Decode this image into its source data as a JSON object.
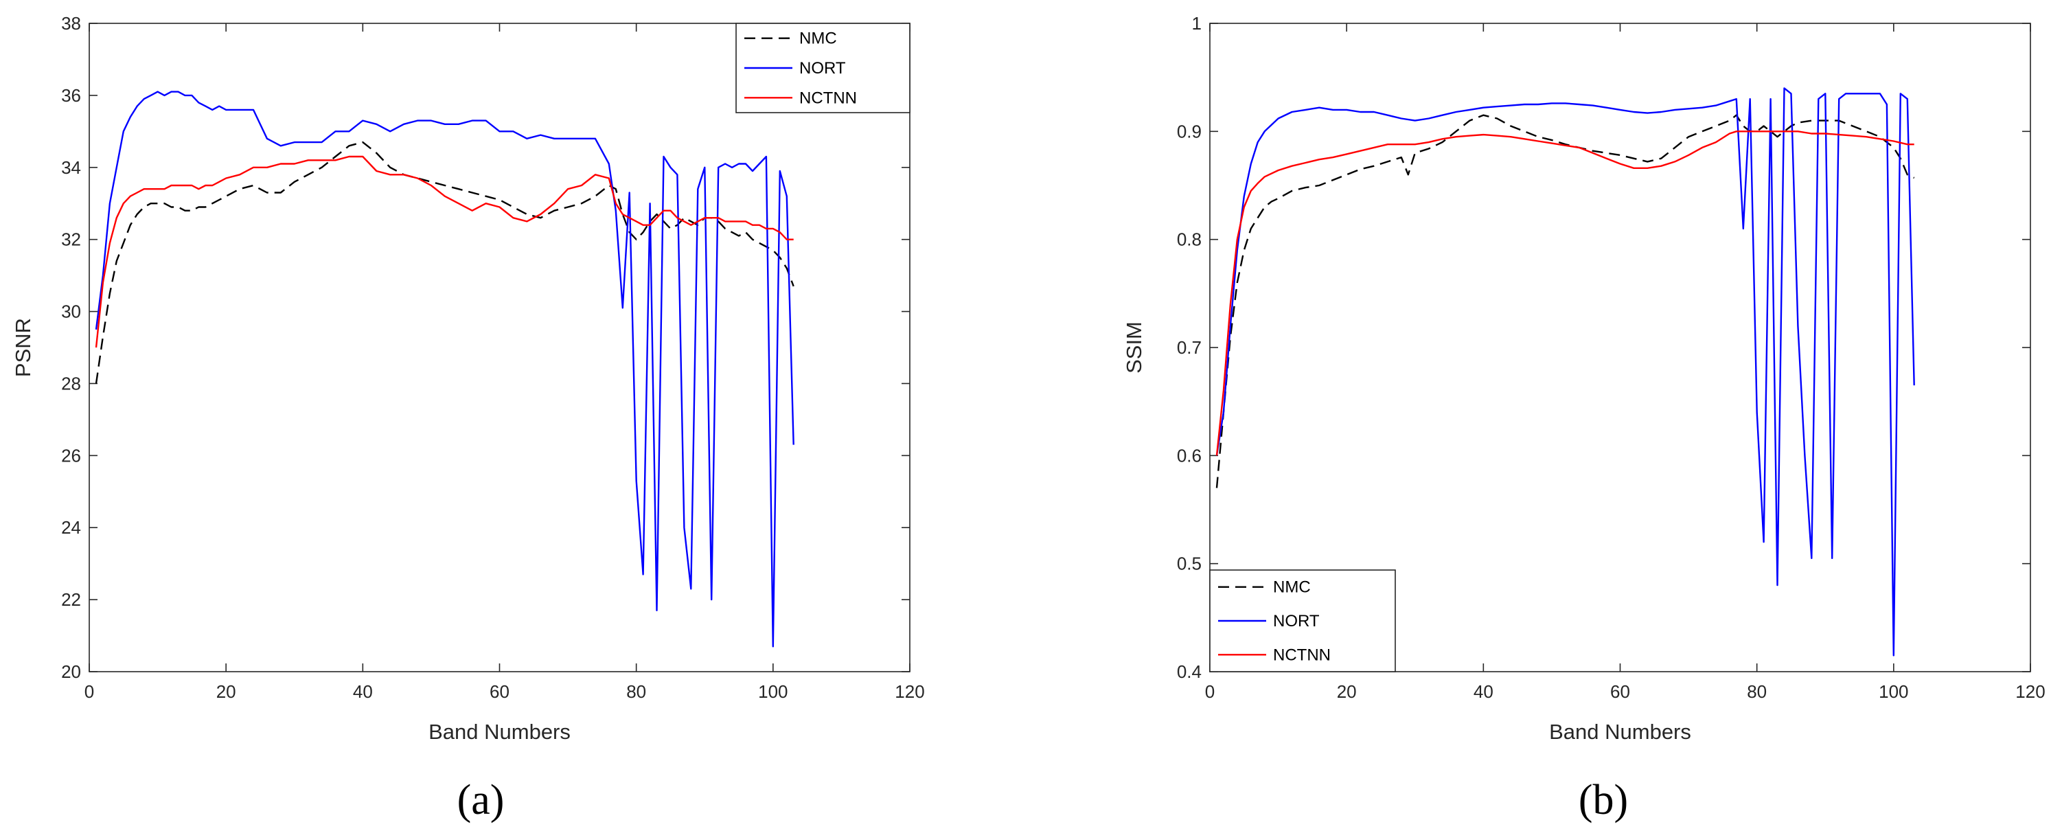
{
  "chart_data": [
    {
      "type": "line",
      "panel": "a",
      "caption": "(a)",
      "title": "",
      "xlabel": "Band Numbers",
      "ylabel": "PSNR",
      "xlim": [
        0,
        120
      ],
      "ylim": [
        20,
        38
      ],
      "xticks": [
        0,
        20,
        40,
        60,
        80,
        100,
        120
      ],
      "yticks": [
        20,
        22,
        24,
        26,
        28,
        30,
        32,
        34,
        36,
        38
      ],
      "grid": false,
      "legend_position": "top-right",
      "series": [
        {
          "name": "NMC",
          "color": "#000000",
          "style": "dashed",
          "x": [
            1,
            2,
            3,
            4,
            5,
            6,
            7,
            8,
            9,
            10,
            11,
            12,
            13,
            14,
            15,
            16,
            17,
            18,
            19,
            20,
            22,
            24,
            26,
            28,
            30,
            32,
            34,
            36,
            38,
            40,
            42,
            44,
            46,
            48,
            50,
            52,
            54,
            56,
            58,
            60,
            62,
            64,
            66,
            68,
            70,
            72,
            74,
            76,
            77,
            78,
            79,
            80,
            81,
            82,
            83,
            84,
            85,
            86,
            87,
            88,
            89,
            90,
            91,
            92,
            93,
            94,
            95,
            96,
            97,
            98,
            99,
            100,
            101,
            102,
            103
          ],
          "y": [
            28,
            29.3,
            30.5,
            31.4,
            31.9,
            32.4,
            32.7,
            32.9,
            33,
            33,
            33,
            32.9,
            32.9,
            32.8,
            32.8,
            32.9,
            32.9,
            33,
            33.1,
            33.2,
            33.4,
            33.5,
            33.3,
            33.3,
            33.6,
            33.8,
            34,
            34.3,
            34.6,
            34.7,
            34.4,
            34,
            33.8,
            33.7,
            33.6,
            33.5,
            33.4,
            33.3,
            33.2,
            33.1,
            32.9,
            32.7,
            32.6,
            32.8,
            32.9,
            33,
            33.2,
            33.5,
            33.4,
            32.7,
            32.2,
            32,
            32.2,
            32.5,
            32.7,
            32.5,
            32.3,
            32.4,
            32.6,
            32.5,
            32.4,
            32.6,
            32.6,
            32.5,
            32.3,
            32.2,
            32.1,
            32.2,
            32,
            31.9,
            31.8,
            31.7,
            31.5,
            31.2,
            30.7
          ]
        },
        {
          "name": "NORT",
          "color": "#0000ff",
          "style": "solid",
          "x": [
            1,
            2,
            3,
            4,
            5,
            6,
            7,
            8,
            9,
            10,
            11,
            12,
            13,
            14,
            15,
            16,
            17,
            18,
            19,
            20,
            22,
            24,
            26,
            28,
            30,
            32,
            34,
            36,
            38,
            40,
            42,
            44,
            46,
            48,
            50,
            52,
            54,
            56,
            58,
            60,
            62,
            64,
            66,
            68,
            70,
            72,
            74,
            76,
            77,
            78,
            79,
            80,
            81,
            82,
            83,
            84,
            85,
            86,
            87,
            88,
            89,
            90,
            91,
            92,
            93,
            94,
            95,
            96,
            97,
            98,
            99,
            100,
            101,
            102,
            103
          ],
          "y": [
            29.5,
            31,
            33,
            34,
            35,
            35.4,
            35.7,
            35.9,
            36,
            36.1,
            36,
            36.1,
            36.1,
            36,
            36,
            35.8,
            35.7,
            35.6,
            35.7,
            35.6,
            35.6,
            35.6,
            34.8,
            34.6,
            34.7,
            34.7,
            34.7,
            35,
            35,
            35.3,
            35.2,
            35,
            35.2,
            35.3,
            35.3,
            35.2,
            35.2,
            35.3,
            35.3,
            35,
            35,
            34.8,
            34.9,
            34.8,
            34.8,
            34.8,
            34.8,
            34.1,
            32.8,
            30.1,
            33.3,
            25.3,
            22.7,
            33,
            21.7,
            34.3,
            34,
            33.8,
            24,
            22.3,
            33.4,
            34,
            22,
            34,
            34.1,
            34,
            34.1,
            34.1,
            33.9,
            34.1,
            34.3,
            20.7,
            33.9,
            33.2,
            26.3
          ]
        },
        {
          "name": "NCTNN",
          "color": "#ff0000",
          "style": "solid",
          "x": [
            1,
            2,
            3,
            4,
            5,
            6,
            7,
            8,
            9,
            10,
            11,
            12,
            13,
            14,
            15,
            16,
            17,
            18,
            19,
            20,
            22,
            24,
            26,
            28,
            30,
            32,
            34,
            36,
            38,
            40,
            42,
            44,
            46,
            48,
            50,
            52,
            54,
            56,
            58,
            60,
            62,
            64,
            66,
            68,
            70,
            72,
            74,
            76,
            77,
            78,
            79,
            80,
            81,
            82,
            83,
            84,
            85,
            86,
            87,
            88,
            89,
            90,
            91,
            92,
            93,
            94,
            95,
            96,
            97,
            98,
            99,
            100,
            101,
            102,
            103
          ],
          "y": [
            29,
            30.8,
            31.9,
            32.6,
            33,
            33.2,
            33.3,
            33.4,
            33.4,
            33.4,
            33.4,
            33.5,
            33.5,
            33.5,
            33.5,
            33.4,
            33.5,
            33.5,
            33.6,
            33.7,
            33.8,
            34,
            34,
            34.1,
            34.1,
            34.2,
            34.2,
            34.2,
            34.3,
            34.3,
            33.9,
            33.8,
            33.8,
            33.7,
            33.5,
            33.2,
            33,
            32.8,
            33,
            32.9,
            32.6,
            32.5,
            32.7,
            33,
            33.4,
            33.5,
            33.8,
            33.7,
            33,
            32.7,
            32.6,
            32.5,
            32.4,
            32.4,
            32.6,
            32.8,
            32.8,
            32.6,
            32.5,
            32.4,
            32.5,
            32.6,
            32.6,
            32.6,
            32.5,
            32.5,
            32.5,
            32.5,
            32.4,
            32.4,
            32.3,
            32.3,
            32.2,
            32,
            32
          ]
        }
      ]
    },
    {
      "type": "line",
      "panel": "b",
      "caption": "(b)",
      "title": "",
      "xlabel": "Band Numbers",
      "ylabel": "SSIM",
      "xlim": [
        0,
        120
      ],
      "ylim": [
        0.4,
        1
      ],
      "xticks": [
        0,
        20,
        40,
        60,
        80,
        100,
        120
      ],
      "yticks": [
        0.4,
        0.5,
        0.6,
        0.7,
        0.8,
        0.9,
        1
      ],
      "grid": false,
      "legend_position": "bottom-left",
      "series": [
        {
          "name": "NMC",
          "color": "#000000",
          "style": "dashed",
          "x": [
            1,
            2,
            3,
            4,
            5,
            6,
            7,
            8,
            9,
            10,
            12,
            14,
            16,
            18,
            20,
            22,
            24,
            26,
            28,
            29,
            30,
            32,
            34,
            36,
            38,
            40,
            42,
            44,
            46,
            48,
            50,
            52,
            54,
            56,
            58,
            60,
            62,
            64,
            66,
            68,
            70,
            72,
            74,
            76,
            77,
            78,
            79,
            80,
            81,
            82,
            83,
            84,
            85,
            86,
            88,
            90,
            92,
            94,
            96,
            98,
            100,
            101,
            102,
            103
          ],
          "y": [
            0.57,
            0.64,
            0.71,
            0.76,
            0.79,
            0.81,
            0.82,
            0.83,
            0.835,
            0.838,
            0.845,
            0.848,
            0.85,
            0.855,
            0.86,
            0.865,
            0.868,
            0.872,
            0.876,
            0.86,
            0.88,
            0.884,
            0.89,
            0.9,
            0.91,
            0.915,
            0.912,
            0.905,
            0.9,
            0.895,
            0.892,
            0.888,
            0.885,
            0.882,
            0.88,
            0.878,
            0.875,
            0.872,
            0.875,
            0.885,
            0.895,
            0.9,
            0.905,
            0.91,
            0.915,
            0.905,
            0.9,
            0.9,
            0.905,
            0.9,
            0.895,
            0.9,
            0.905,
            0.908,
            0.91,
            0.91,
            0.91,
            0.905,
            0.9,
            0.895,
            0.885,
            0.875,
            0.86,
            0.857
          ]
        },
        {
          "name": "NORT",
          "color": "#0000ff",
          "style": "solid",
          "x": [
            1,
            2,
            3,
            4,
            5,
            6,
            7,
            8,
            10,
            12,
            14,
            16,
            18,
            20,
            22,
            24,
            26,
            28,
            30,
            32,
            34,
            36,
            38,
            40,
            42,
            44,
            46,
            48,
            50,
            52,
            54,
            56,
            58,
            60,
            62,
            64,
            66,
            68,
            70,
            72,
            74,
            76,
            77,
            78,
            79,
            80,
            81,
            82,
            83,
            84,
            85,
            86,
            87,
            88,
            89,
            90,
            91,
            92,
            93,
            94,
            95,
            96,
            97,
            98,
            99,
            100,
            101,
            102,
            103
          ],
          "y": [
            0.6,
            0.64,
            0.72,
            0.79,
            0.84,
            0.87,
            0.89,
            0.9,
            0.912,
            0.918,
            0.92,
            0.922,
            0.92,
            0.92,
            0.918,
            0.918,
            0.915,
            0.912,
            0.91,
            0.912,
            0.915,
            0.918,
            0.92,
            0.922,
            0.923,
            0.924,
            0.925,
            0.925,
            0.926,
            0.926,
            0.925,
            0.924,
            0.922,
            0.92,
            0.918,
            0.917,
            0.918,
            0.92,
            0.921,
            0.922,
            0.924,
            0.928,
            0.93,
            0.81,
            0.93,
            0.64,
            0.52,
            0.93,
            0.48,
            0.94,
            0.935,
            0.72,
            0.6,
            0.505,
            0.93,
            0.935,
            0.505,
            0.93,
            0.935,
            0.935,
            0.935,
            0.935,
            0.935,
            0.935,
            0.925,
            0.415,
            0.935,
            0.93,
            0.665
          ]
        },
        {
          "name": "NCTNN",
          "color": "#ff0000",
          "style": "solid",
          "x": [
            1,
            2,
            3,
            4,
            5,
            6,
            7,
            8,
            10,
            12,
            14,
            16,
            18,
            20,
            22,
            24,
            26,
            28,
            30,
            32,
            34,
            36,
            38,
            40,
            42,
            44,
            46,
            48,
            50,
            52,
            54,
            56,
            58,
            60,
            62,
            64,
            66,
            68,
            70,
            72,
            74,
            76,
            77,
            78,
            80,
            82,
            84,
            86,
            88,
            90,
            92,
            94,
            96,
            98,
            100,
            102,
            103
          ],
          "y": [
            0.6,
            0.66,
            0.74,
            0.8,
            0.83,
            0.845,
            0.852,
            0.858,
            0.864,
            0.868,
            0.871,
            0.874,
            0.876,
            0.879,
            0.882,
            0.885,
            0.888,
            0.888,
            0.888,
            0.89,
            0.893,
            0.895,
            0.896,
            0.897,
            0.896,
            0.895,
            0.893,
            0.891,
            0.889,
            0.887,
            0.885,
            0.88,
            0.875,
            0.87,
            0.866,
            0.866,
            0.868,
            0.872,
            0.878,
            0.885,
            0.89,
            0.898,
            0.9,
            0.9,
            0.9,
            0.9,
            0.9,
            0.9,
            0.898,
            0.898,
            0.897,
            0.896,
            0.895,
            0.893,
            0.891,
            0.888,
            0.888
          ]
        }
      ]
    }
  ]
}
